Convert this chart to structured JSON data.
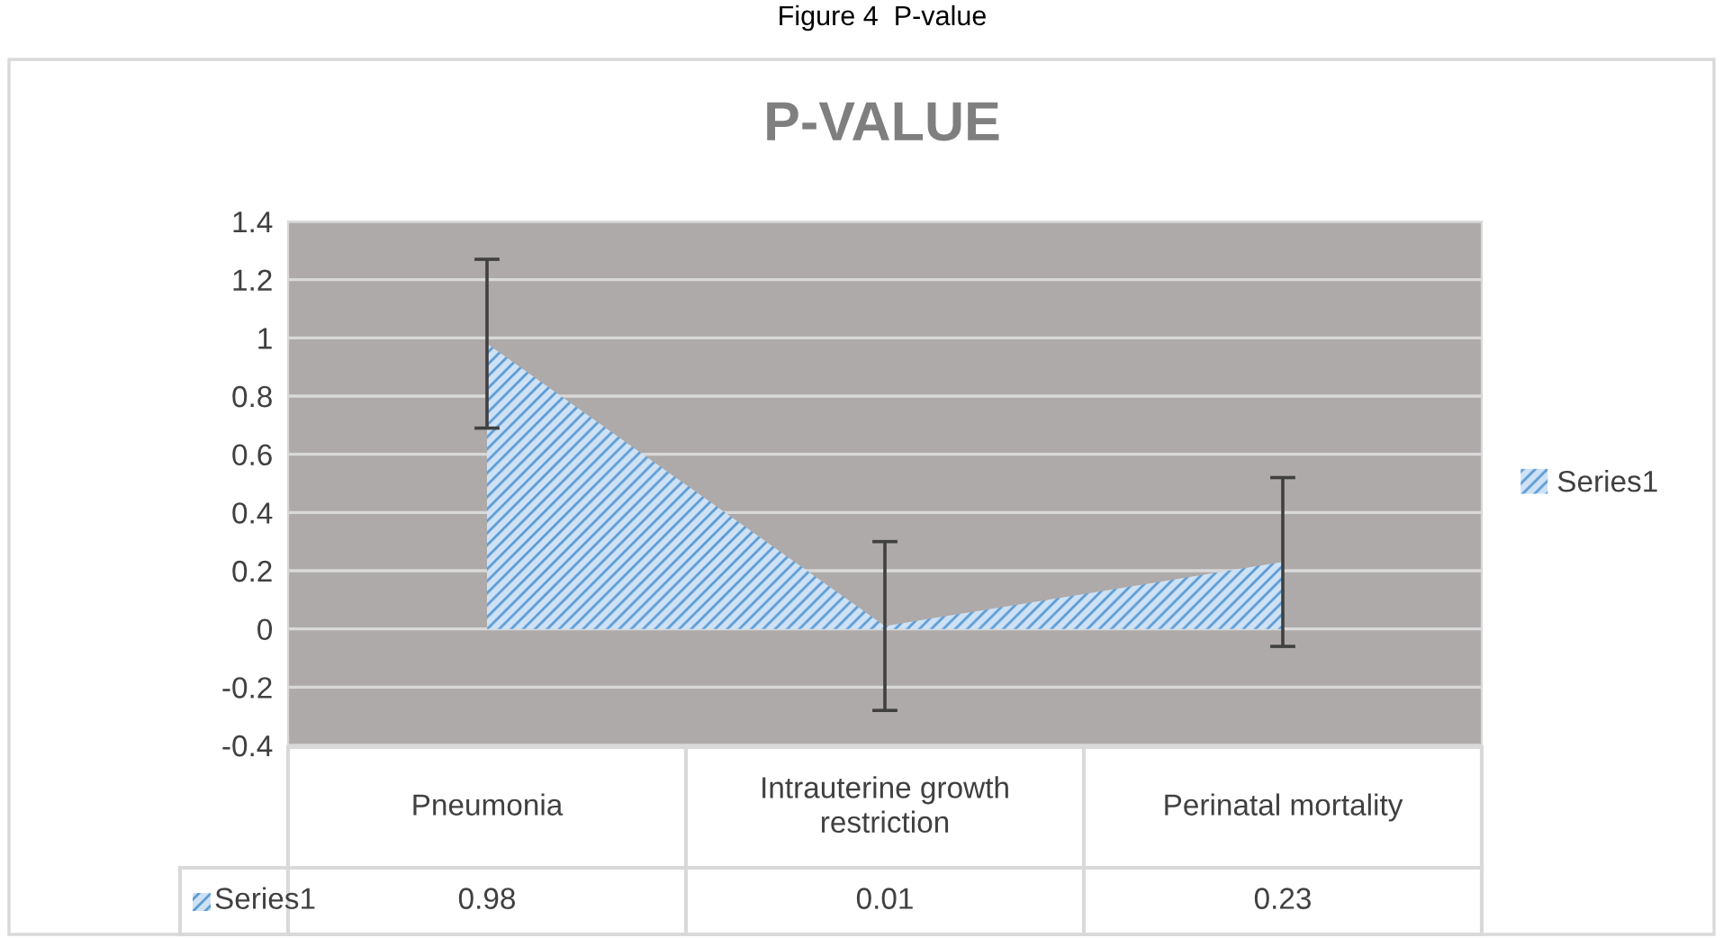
{
  "chart_data": {
    "type": "area",
    "title": "P-VALUE",
    "annotations": [
      "Figure 4  P-value"
    ],
    "categories": [
      "Pneumonia",
      "Intrauterine growth\nrestriction",
      "Perinatal mortality"
    ],
    "series": [
      {
        "name": "Series1",
        "color": "#5b9bd5",
        "values": [
          0.98,
          0.01,
          0.23
        ],
        "errors": [
          0.29,
          0.29,
          0.29
        ]
      }
    ],
    "ylim": [
      -0.4,
      1.4
    ],
    "yticks": [
      -0.4,
      -0.2,
      0,
      0.2,
      0.4,
      0.6,
      0.8,
      1,
      1.2,
      1.4
    ],
    "grid": "y",
    "legend": "right",
    "data_labels": true
  }
}
